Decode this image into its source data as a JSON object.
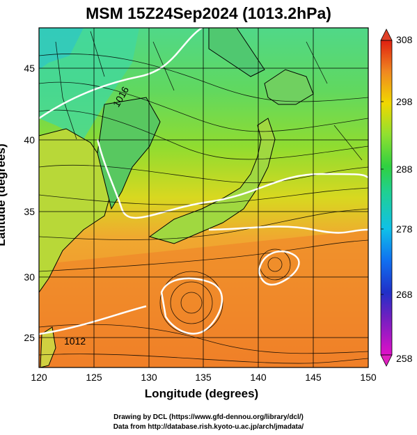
{
  "title": "MSM 15Z24Sep2024 (1013.2hPa)",
  "axes": {
    "xlabel": "Longitude (degrees)",
    "ylabel": "Latitude  (degrees)",
    "xticks": [
      "120",
      "125",
      "130",
      "135",
      "140",
      "145",
      "150"
    ],
    "yticks": [
      "25",
      "30",
      "35",
      "40",
      "45"
    ],
    "x_range": [
      120,
      150
    ],
    "y_range": [
      22.4,
      47.6
    ]
  },
  "colorbar": {
    "ticks": [
      "258",
      "268",
      "278",
      "288",
      "298",
      "308"
    ],
    "range": [
      258,
      308
    ],
    "colors": [
      "#e000d0",
      "#3030c0",
      "#00b0ff",
      "#20d090",
      "#30d030",
      "#a0e030",
      "#f0d000",
      "#f08000",
      "#e02000"
    ]
  },
  "contours": {
    "labels": [
      "1012",
      "1016"
    ]
  },
  "footer": {
    "line1": "Drawing by DCL (https://www.gfd-dennou.org/library/dcl/)",
    "line2": "Data from http://database.rish.kyoto-u.ac.jp/arch/jmadata/"
  }
}
